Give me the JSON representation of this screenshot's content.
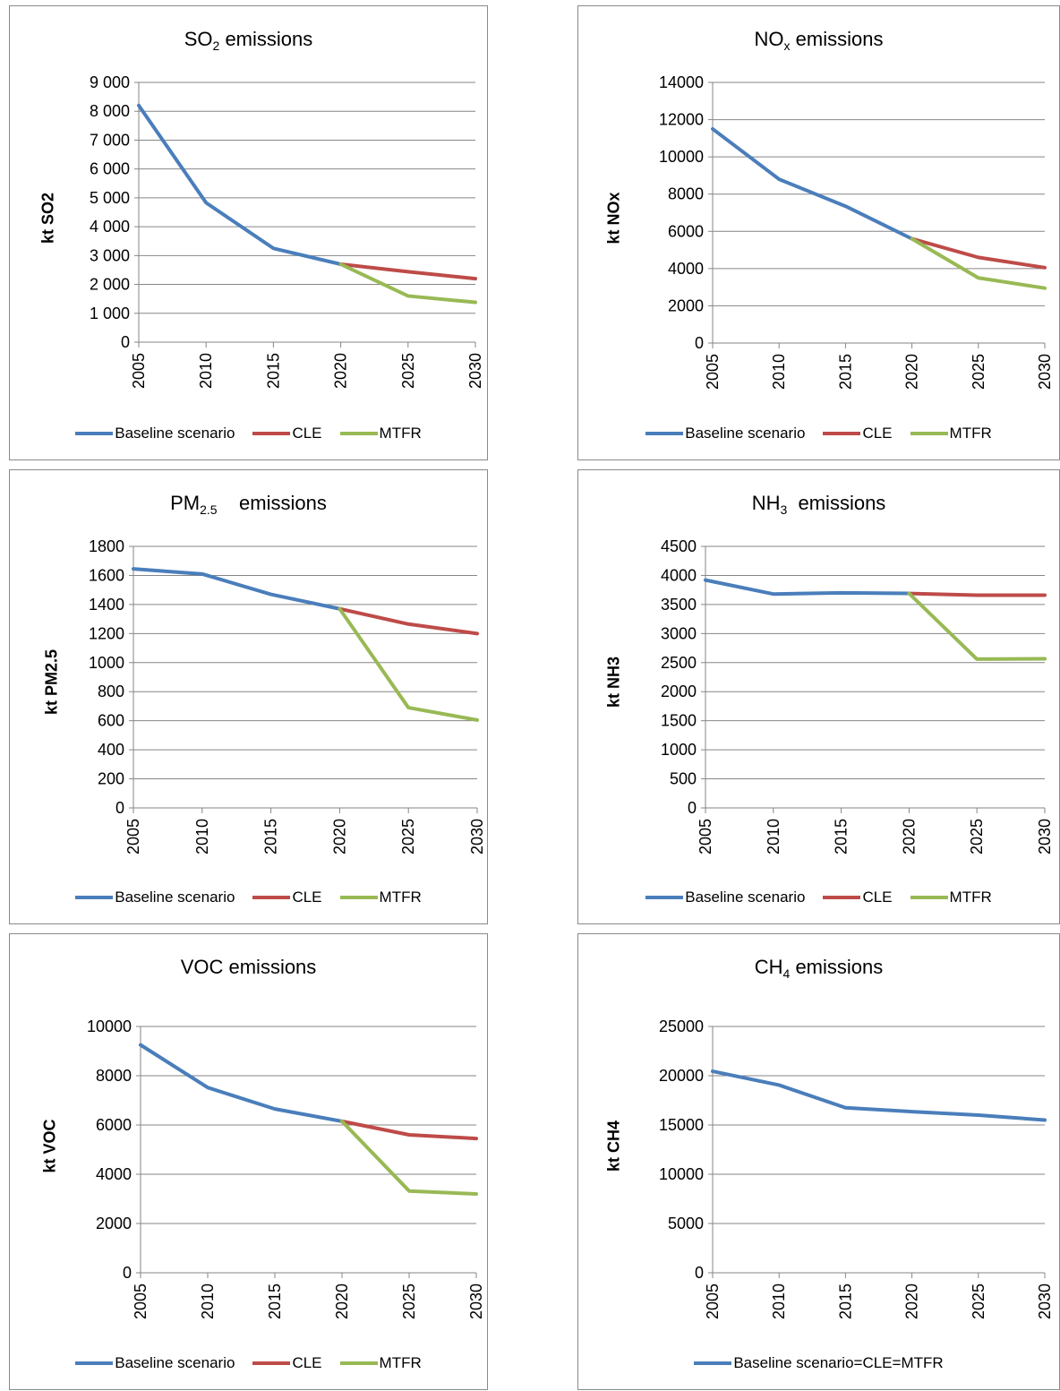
{
  "colors": {
    "baseline": "#4A7EBB",
    "cle": "#BE4B48",
    "mtfr": "#98B954",
    "grid": "#868686",
    "axis": "#868686"
  },
  "chart_data": [
    {
      "type": "line",
      "title_main": "SO",
      "title_sub": "2",
      "title_rest": " emissions",
      "ylabel": "kt SO2",
      "ylim": [
        0,
        9000
      ],
      "yticks": [
        "0",
        "1 000",
        "2 000",
        "3 000",
        "4 000",
        "5 000",
        "6 000",
        "7 000",
        "8 000",
        "9 000"
      ],
      "x": [
        "2005",
        "2010",
        "2015",
        "2020",
        "2025",
        "2030"
      ],
      "series": [
        {
          "name": "Baseline scenario",
          "color_key": "baseline",
          "values": [
            8200,
            4830,
            3250,
            2700,
            null,
            null
          ]
        },
        {
          "name": "CLE",
          "color_key": "cle",
          "values": [
            null,
            null,
            null,
            2700,
            2440,
            2200
          ]
        },
        {
          "name": "MTFR",
          "color_key": "mtfr",
          "values": [
            null,
            null,
            null,
            2700,
            1600,
            1380
          ]
        }
      ]
    },
    {
      "type": "line",
      "title_main": "NO",
      "title_sub": "x",
      "title_rest": " emissions",
      "ylabel": "kt NOx",
      "ylim": [
        0,
        14000
      ],
      "yticks": [
        "0",
        "2000",
        "4000",
        "6000",
        "8000",
        "10000",
        "12000",
        "14000"
      ],
      "x": [
        "2005",
        "2010",
        "2015",
        "2020",
        "2025",
        "2030"
      ],
      "series": [
        {
          "name": "Baseline scenario",
          "color_key": "baseline",
          "values": [
            11500,
            8800,
            7350,
            5600,
            null,
            null
          ]
        },
        {
          "name": "CLE",
          "color_key": "cle",
          "values": [
            null,
            null,
            null,
            5600,
            4600,
            4050
          ]
        },
        {
          "name": "MTFR",
          "color_key": "mtfr",
          "values": [
            null,
            null,
            null,
            5600,
            3500,
            2950
          ]
        }
      ]
    },
    {
      "type": "line",
      "title_main": "PM",
      "title_sub": "2.5",
      "title_rest": "    emissions",
      "ylabel": "kt PM2.5",
      "ylim": [
        0,
        1800
      ],
      "yticks": [
        "0",
        "200",
        "400",
        "600",
        "800",
        "1000",
        "1200",
        "1400",
        "1600",
        "1800"
      ],
      "x": [
        "2005",
        "2010",
        "2015",
        "2020",
        "2025",
        "2030"
      ],
      "series": [
        {
          "name": "Baseline scenario",
          "color_key": "baseline",
          "values": [
            1645,
            1610,
            1470,
            1370,
            null,
            null
          ]
        },
        {
          "name": "CLE",
          "color_key": "cle",
          "values": [
            null,
            null,
            null,
            1370,
            1265,
            1200
          ]
        },
        {
          "name": "MTFR",
          "color_key": "mtfr",
          "values": [
            null,
            null,
            null,
            1370,
            690,
            605
          ]
        }
      ]
    },
    {
      "type": "line",
      "title_main": "NH",
      "title_sub": "3",
      "title_rest": "  emissions",
      "ylabel": "kt NH3",
      "ylim": [
        0,
        4500
      ],
      "yticks": [
        "0",
        "500",
        "1000",
        "1500",
        "2000",
        "2500",
        "3000",
        "3500",
        "4000",
        "4500"
      ],
      "x": [
        "2005",
        "2010",
        "2015",
        "2020",
        "2025",
        "2030"
      ],
      "series": [
        {
          "name": "Baseline scenario",
          "color_key": "baseline",
          "values": [
            3920,
            3680,
            3700,
            3690,
            null,
            null
          ]
        },
        {
          "name": "CLE",
          "color_key": "cle",
          "values": [
            null,
            null,
            null,
            3690,
            3660,
            3660
          ]
        },
        {
          "name": "MTFR",
          "color_key": "mtfr",
          "values": [
            null,
            null,
            null,
            3690,
            2560,
            2565
          ]
        }
      ]
    },
    {
      "type": "line",
      "title_main": "VOC emissions",
      "title_sub": "",
      "title_rest": "",
      "ylabel": "kt VOC",
      "ylim": [
        0,
        10000
      ],
      "yticks": [
        "0",
        "2000",
        "4000",
        "6000",
        "8000",
        "10000"
      ],
      "x": [
        "2005",
        "2010",
        "2015",
        "2020",
        "2025",
        "2030"
      ],
      "series": [
        {
          "name": "Baseline scenario",
          "color_key": "baseline",
          "values": [
            9250,
            7520,
            6650,
            6150,
            null,
            null
          ]
        },
        {
          "name": "CLE",
          "color_key": "cle",
          "values": [
            null,
            null,
            null,
            6150,
            5600,
            5450
          ]
        },
        {
          "name": "MTFR",
          "color_key": "mtfr",
          "values": [
            null,
            null,
            null,
            6150,
            3320,
            3200
          ]
        }
      ]
    },
    {
      "type": "line",
      "title_main": "CH",
      "title_sub": "4",
      "title_rest": " emissions",
      "ylabel": "kt CH4",
      "ylim": [
        0,
        25000
      ],
      "yticks": [
        "0",
        "5000",
        "10000",
        "15000",
        "20000",
        "25000"
      ],
      "x": [
        "2005",
        "2010",
        "2015",
        "2020",
        "2025",
        "2030"
      ],
      "series": [
        {
          "name": "Baseline scenario=CLE=MTFR",
          "color_key": "baseline",
          "values": [
            20450,
            19050,
            16750,
            16350,
            16000,
            15500
          ]
        }
      ]
    }
  ]
}
